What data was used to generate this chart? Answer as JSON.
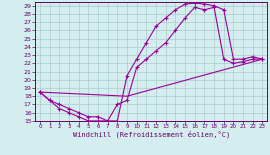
{
  "xlabel": "Windchill (Refroidissement éolien,°C)",
  "bg_color": "#d4eef0",
  "line_color": "#990099",
  "grid_color": "#aacccc",
  "xlim": [
    -0.5,
    23.5
  ],
  "ylim": [
    15,
    29.5
  ],
  "xticks": [
    0,
    1,
    2,
    3,
    4,
    5,
    6,
    7,
    8,
    9,
    10,
    11,
    12,
    13,
    14,
    15,
    16,
    17,
    18,
    19,
    20,
    21,
    22,
    23
  ],
  "yticks": [
    15,
    16,
    17,
    18,
    19,
    20,
    21,
    22,
    23,
    24,
    25,
    26,
    27,
    28,
    29
  ],
  "line1_x": [
    0,
    1,
    2,
    3,
    4,
    5,
    6,
    7,
    8,
    9,
    10,
    11,
    12,
    13,
    14,
    15,
    16,
    17,
    18,
    19,
    20,
    21,
    22,
    23
  ],
  "line1_y": [
    18.5,
    17.5,
    17.0,
    16.5,
    16.0,
    15.5,
    15.5,
    15.0,
    15.0,
    20.5,
    22.5,
    24.5,
    26.5,
    27.5,
    28.5,
    29.2,
    29.3,
    29.2,
    29.0,
    28.5,
    22.5,
    22.5,
    22.8,
    22.5
  ],
  "line2_x": [
    0,
    1,
    2,
    3,
    4,
    5,
    6,
    7,
    8,
    9,
    10,
    11,
    12,
    13,
    14,
    15,
    16,
    17,
    18,
    19,
    20,
    21,
    22,
    23
  ],
  "line2_y": [
    18.5,
    17.5,
    16.5,
    16.0,
    15.5,
    15.0,
    15.0,
    15.0,
    17.0,
    17.5,
    21.5,
    22.5,
    23.5,
    24.5,
    26.0,
    27.5,
    28.8,
    28.5,
    28.8,
    22.5,
    22.0,
    22.2,
    22.5,
    22.5
  ],
  "line3_x": [
    0,
    9,
    23
  ],
  "line3_y": [
    18.5,
    18.0,
    22.5
  ]
}
